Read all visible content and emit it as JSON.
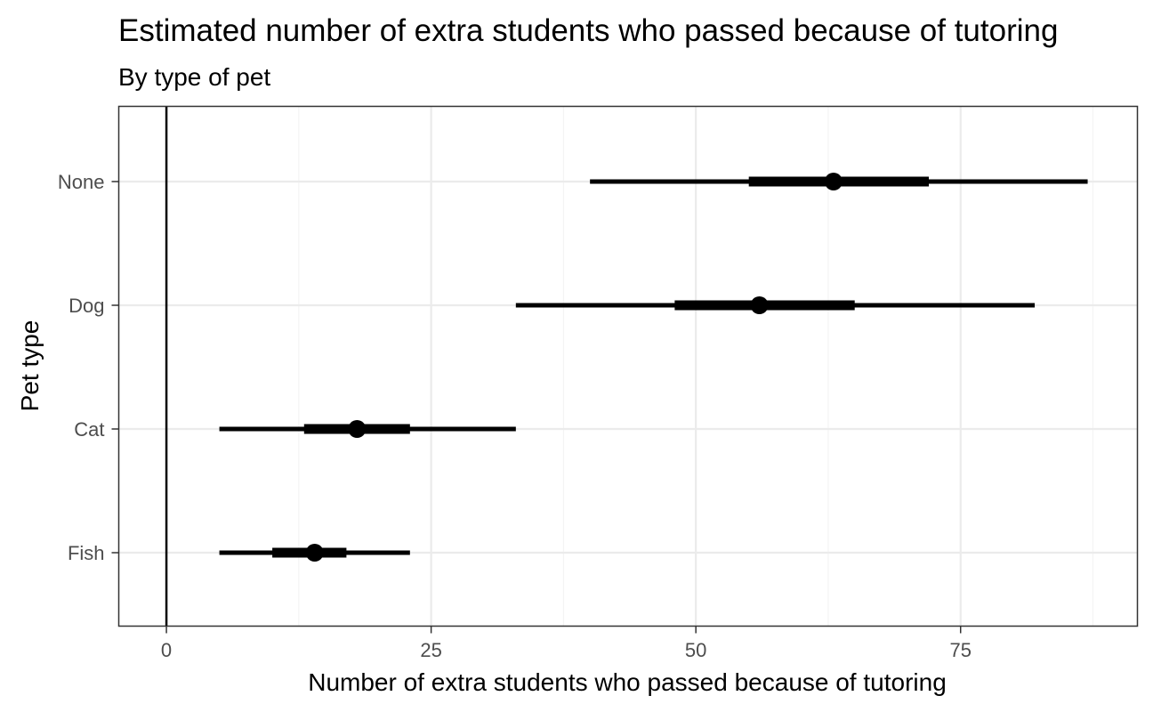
{
  "chart_data": {
    "type": "pointrange",
    "title": "Estimated number of extra students who passed because of tutoring",
    "subtitle": "By type of pet",
    "xlabel": "Number of extra students who passed because of tutoring",
    "ylabel": "Pet type",
    "xlim": [
      -4.5,
      91.7
    ],
    "x_ticks": [
      0,
      25,
      50,
      75
    ],
    "x_tick_labels": [
      "0",
      "25",
      "50",
      "75"
    ],
    "categories": [
      "None",
      "Dog",
      "Cat",
      "Fish"
    ],
    "series": [
      {
        "category": "None",
        "estimate": 63.0,
        "inner": [
          55.0,
          72.0
        ],
        "outer": [
          40.0,
          87.0
        ]
      },
      {
        "category": "Dog",
        "estimate": 56.0,
        "inner": [
          48.0,
          65.0
        ],
        "outer": [
          33.0,
          82.0
        ]
      },
      {
        "category": "Cat",
        "estimate": 18.0,
        "inner": [
          13.0,
          23.0
        ],
        "outer": [
          5.0,
          33.0
        ]
      },
      {
        "category": "Fish",
        "estimate": 14.0,
        "inner": [
          10.0,
          17.0
        ],
        "outer": [
          5.0,
          23.0
        ]
      }
    ],
    "reference_line_x": 0,
    "grid": true,
    "legend": "none",
    "colors": {
      "mark": "#000000",
      "grid_major": "#ebebeb",
      "grid_minor": "#f4f4f4",
      "panel_border": "#333333",
      "tick_label": "#4d4d4d"
    }
  }
}
